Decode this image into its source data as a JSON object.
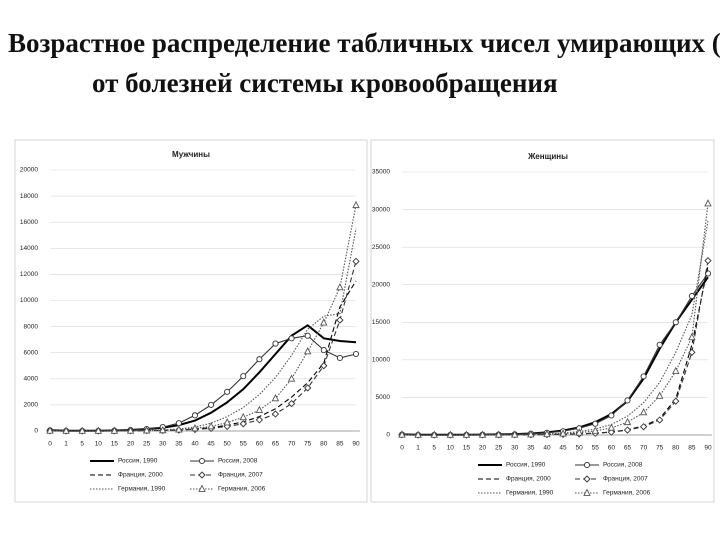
{
  "title": [
    "Возрастное распределение табличных чисел умирающих (dx)",
    "от болезней системы кровообращения"
  ],
  "chart_data": [
    {
      "type": "line",
      "title": "Мужчины",
      "categories": [
        "0",
        "1",
        "5",
        "10",
        "15",
        "20",
        "25",
        "30",
        "35",
        "40",
        "45",
        "50",
        "55",
        "60",
        "65",
        "70",
        "75",
        "80",
        "85",
        "90"
      ],
      "ylim": [
        0,
        20000
      ],
      "yticks": [
        0,
        2000,
        4000,
        6000,
        8000,
        10000,
        12000,
        14000,
        16000,
        18000,
        20000
      ],
      "grid": true,
      "series": [
        {
          "name": "Россия, 1990",
          "color": "#000000",
          "style": "solid",
          "marker": "none",
          "values": [
            60,
            20,
            20,
            20,
            40,
            80,
            150,
            250,
            450,
            800,
            1400,
            2200,
            3200,
            4500,
            5900,
            7300,
            8100,
            7100,
            6900,
            6800
          ]
        },
        {
          "name": "Россия, 2008",
          "color": "#333333",
          "style": "solid",
          "marker": "circle",
          "values": [
            50,
            10,
            10,
            10,
            30,
            70,
            150,
            300,
            600,
            1200,
            2000,
            3000,
            4200,
            5500,
            6700,
            7100,
            7300,
            6200,
            5600,
            5900
          ]
        },
        {
          "name": "Франция, 2000",
          "color": "#000000",
          "style": "dashed",
          "marker": "none",
          "values": [
            20,
            5,
            5,
            5,
            10,
            20,
            30,
            50,
            80,
            150,
            250,
            450,
            700,
            1100,
            1700,
            2600,
            3700,
            5200,
            9500,
            11500
          ]
        },
        {
          "name": "Франция, 2007",
          "color": "#333333",
          "style": "dashed",
          "marker": "diamond",
          "values": [
            20,
            5,
            5,
            5,
            10,
            20,
            30,
            40,
            70,
            120,
            200,
            350,
            550,
            850,
            1300,
            2100,
            3300,
            5000,
            8500,
            13000
          ]
        },
        {
          "name": "Германия, 1990",
          "color": "#555555",
          "style": "dotted",
          "marker": "none",
          "values": [
            30,
            5,
            5,
            5,
            10,
            20,
            40,
            80,
            150,
            300,
            600,
            1100,
            1800,
            2800,
            4100,
            5800,
            7800,
            8800,
            9000,
            15500
          ]
        },
        {
          "name": "Германия, 2006",
          "color": "#555555",
          "style": "dotted",
          "marker": "triangle",
          "values": [
            20,
            5,
            5,
            5,
            10,
            15,
            30,
            50,
            100,
            200,
            350,
            650,
            1050,
            1600,
            2500,
            4000,
            6100,
            8300,
            11000,
            17300
          ]
        }
      ]
    },
    {
      "type": "line",
      "title": "Женщины",
      "categories": [
        "0",
        "1",
        "5",
        "10",
        "15",
        "20",
        "25",
        "30",
        "35",
        "40",
        "45",
        "50",
        "55",
        "60",
        "65",
        "70",
        "75",
        "80",
        "85",
        "90"
      ],
      "ylim": [
        0,
        35000
      ],
      "yticks": [
        0,
        5000,
        10000,
        15000,
        20000,
        25000,
        30000,
        35000
      ],
      "grid": true,
      "series": [
        {
          "name": "Россия, 1990",
          "color": "#000000",
          "style": "solid",
          "marker": "none",
          "values": [
            80,
            20,
            20,
            20,
            30,
            50,
            80,
            120,
            200,
            350,
            600,
            1000,
            1700,
            2800,
            4500,
            7500,
            11500,
            15000,
            18000,
            21000
          ]
        },
        {
          "name": "Россия, 2008",
          "color": "#333333",
          "style": "solid",
          "marker": "circle",
          "values": [
            60,
            15,
            15,
            15,
            20,
            40,
            60,
            100,
            180,
            300,
            500,
            900,
            1500,
            2600,
            4600,
            7800,
            12000,
            15000,
            18500,
            21500
          ]
        },
        {
          "name": "Франция, 2000",
          "color": "#000000",
          "style": "dashed",
          "marker": "none",
          "values": [
            30,
            5,
            5,
            5,
            5,
            10,
            20,
            30,
            40,
            60,
            100,
            150,
            250,
            400,
            700,
            1200,
            2200,
            4800,
            12000,
            22500
          ]
        },
        {
          "name": "Франция, 2007",
          "color": "#333333",
          "style": "dashed",
          "marker": "diamond",
          "values": [
            30,
            5,
            5,
            5,
            5,
            10,
            20,
            30,
            40,
            60,
            90,
            140,
            230,
            380,
            650,
            1100,
            2000,
            4500,
            11000,
            23200
          ]
        },
        {
          "name": "Германия, 1990",
          "color": "#555555",
          "style": "dotted",
          "marker": "none",
          "values": [
            40,
            5,
            5,
            5,
            10,
            15,
            30,
            50,
            90,
            150,
            250,
            450,
            800,
            1400,
            2500,
            4300,
            7000,
            11000,
            16000,
            28500
          ]
        },
        {
          "name": "Германия, 2006",
          "color": "#555555",
          "style": "dotted",
          "marker": "triangle",
          "values": [
            30,
            5,
            5,
            5,
            5,
            10,
            20,
            30,
            60,
            100,
            180,
            300,
            550,
            950,
            1700,
            3000,
            5200,
            8500,
            13000,
            30800
          ]
        }
      ]
    }
  ]
}
